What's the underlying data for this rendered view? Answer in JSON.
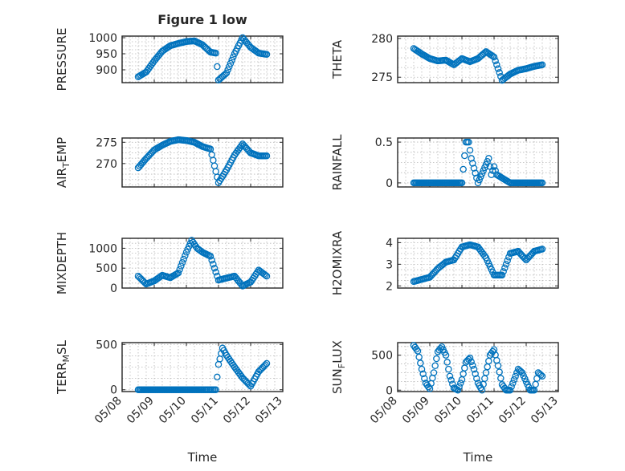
{
  "figure": {
    "title": "Figure 1 low",
    "xlabel": "Time",
    "marker_color": "#0072BD",
    "panel_ids": [
      "p0",
      "p1",
      "p2",
      "p3",
      "p4",
      "p5",
      "p6",
      "p7"
    ]
  },
  "chart_data": [
    {
      "id": "p0",
      "type": "scatter",
      "title": "Figure 1 low",
      "ylabel": "PRESSURE",
      "xlim": [
        "05/08",
        "05/13"
      ],
      "ylim": [
        860,
        1005
      ],
      "yticks": [
        900,
        950,
        1000
      ],
      "xticks": [
        "05/08",
        "05/09",
        "05/10",
        "05/11",
        "05/12",
        "05/13"
      ],
      "grid": true,
      "series": [
        {
          "x": [
            "05/08 12:00",
            "05/08 18:00",
            "05/09 00:00",
            "05/09 06:00",
            "05/09 12:00",
            "05/09 18:00",
            "05/10 00:00",
            "05/10 06:00",
            "05/10 12:00",
            "05/10 18:00",
            "05/10 22:00",
            "05/11 00:00",
            "05/11 06:00",
            "05/11 12:00",
            "05/11 18:00",
            "05/12 00:00",
            "05/12 06:00",
            "05/12 12:00"
          ],
          "y": [
            878,
            893,
            928,
            958,
            975,
            982,
            988,
            990,
            978,
            955,
            952,
            868,
            890,
            950,
            1000,
            970,
            952,
            948
          ]
        }
      ]
    },
    {
      "id": "p1",
      "type": "scatter",
      "ylabel": "THETA",
      "xlim": [
        "05/08",
        "05/13"
      ],
      "ylim": [
        274.3,
        280.3
      ],
      "yticks": [
        275,
        280
      ],
      "xticks": [
        "05/08",
        "05/09",
        "05/10",
        "05/11",
        "05/12",
        "05/13"
      ],
      "grid": true,
      "series": [
        {
          "x": [
            "05/08 12:00",
            "05/08 18:00",
            "05/09 00:00",
            "05/09 06:00",
            "05/09 12:00",
            "05/09 18:00",
            "05/10 00:00",
            "05/10 06:00",
            "05/10 12:00",
            "05/10 18:00",
            "05/11 00:00",
            "05/11 06:00",
            "05/11 12:00",
            "05/11 18:00",
            "05/12 00:00",
            "05/12 06:00",
            "05/12 12:00"
          ],
          "y": [
            278.7,
            278.0,
            277.4,
            277.1,
            277.2,
            276.6,
            277.4,
            277.0,
            277.4,
            278.3,
            277.6,
            274.6,
            275.4,
            275.9,
            276.1,
            276.4,
            276.6
          ]
        }
      ]
    },
    {
      "id": "p2",
      "type": "scatter",
      "ylabel": "AIR_TEMP",
      "xlim": [
        "05/08",
        "05/13"
      ],
      "ylim": [
        264.5,
        276
      ],
      "yticks": [
        270,
        275
      ],
      "xticks": [
        "05/08",
        "05/09",
        "05/10",
        "05/11",
        "05/12",
        "05/13"
      ],
      "grid": true,
      "series": [
        {
          "x": [
            "05/08 12:00",
            "05/08 18:00",
            "05/09 00:00",
            "05/09 06:00",
            "05/09 12:00",
            "05/09 18:00",
            "05/10 00:00",
            "05/10 06:00",
            "05/10 12:00",
            "05/10 18:00",
            "05/11 00:00",
            "05/11 06:00",
            "05/11 12:00",
            "05/11 18:00",
            "05/12 00:00",
            "05/12 06:00",
            "05/12 12:00"
          ],
          "y": [
            269.0,
            271.2,
            273.2,
            274.3,
            275.2,
            275.6,
            275.4,
            275.0,
            274.0,
            273.4,
            265.5,
            268.5,
            272.0,
            274.6,
            272.5,
            271.8,
            271.8
          ]
        }
      ]
    },
    {
      "id": "p3",
      "type": "scatter",
      "ylabel": "RAINFALL",
      "xlim": [
        "05/08",
        "05/13"
      ],
      "ylim": [
        -0.05,
        0.55
      ],
      "yticks": [
        0,
        0.5
      ],
      "xticks": [
        "05/08",
        "05/09",
        "05/10",
        "05/11",
        "05/12",
        "05/13"
      ],
      "grid": true,
      "series": [
        {
          "x": [
            "05/08 12:00",
            "05/09 00:00",
            "05/09 12:00",
            "05/10 00:00",
            "05/10 03:00",
            "05/10 05:00",
            "05/10 07:00",
            "05/10 12:00",
            "05/10 20:00",
            "05/10 22:00",
            "05/11 00:00",
            "05/11 02:00",
            "05/11 12:00",
            "05/12 00:00",
            "05/12 12:00"
          ],
          "y": [
            0,
            0,
            0,
            0,
            0.5,
            0.5,
            0.3,
            0,
            0.3,
            0.1,
            0.2,
            0.1,
            0,
            0,
            0
          ]
        }
      ]
    },
    {
      "id": "p4",
      "type": "scatter",
      "ylabel": "MIXDEPTH",
      "xlim": [
        "05/08",
        "05/13"
      ],
      "ylim": [
        0,
        1250
      ],
      "yticks": [
        0,
        500,
        1000
      ],
      "xticks": [
        "05/08",
        "05/09",
        "05/10",
        "05/11",
        "05/12",
        "05/13"
      ],
      "grid": true,
      "series": [
        {
          "x": [
            "05/08 12:00",
            "05/08 18:00",
            "05/09 00:00",
            "05/09 06:00",
            "05/09 12:00",
            "05/09 18:00",
            "05/10 00:00",
            "05/10 04:00",
            "05/10 08:00",
            "05/10 12:00",
            "05/10 18:00",
            "05/11 00:00",
            "05/11 06:00",
            "05/11 12:00",
            "05/11 18:00",
            "05/12 00:00",
            "05/12 06:00",
            "05/12 12:00"
          ],
          "y": [
            300,
            100,
            180,
            320,
            260,
            380,
            900,
            1200,
            1000,
            900,
            800,
            200,
            250,
            300,
            50,
            150,
            450,
            300
          ]
        }
      ]
    },
    {
      "id": "p5",
      "type": "scatter",
      "ylabel": "H2OMIXRA",
      "xlim": [
        "05/08",
        "05/13"
      ],
      "ylim": [
        1.9,
        4.2
      ],
      "yticks": [
        2,
        3,
        4
      ],
      "xticks": [
        "05/08",
        "05/09",
        "05/10",
        "05/11",
        "05/12",
        "05/13"
      ],
      "grid": true,
      "series": [
        {
          "x": [
            "05/08 12:00",
            "05/08 18:00",
            "05/09 00:00",
            "05/09 06:00",
            "05/09 12:00",
            "05/09 18:00",
            "05/10 00:00",
            "05/10 06:00",
            "05/10 12:00",
            "05/10 18:00",
            "05/11 00:00",
            "05/11 06:00",
            "05/11 12:00",
            "05/11 18:00",
            "05/12 00:00",
            "05/12 06:00",
            "05/12 12:00"
          ],
          "y": [
            2.2,
            2.3,
            2.4,
            2.8,
            3.1,
            3.2,
            3.8,
            3.9,
            3.8,
            3.3,
            2.5,
            2.5,
            3.5,
            3.6,
            3.2,
            3.6,
            3.7
          ]
        }
      ]
    },
    {
      "id": "p6",
      "type": "scatter",
      "ylabel": "TERR_MSL",
      "xlim": [
        "05/08",
        "05/13"
      ],
      "ylim": [
        -20,
        520
      ],
      "yticks": [
        0,
        500
      ],
      "xticks": [
        "05/08",
        "05/09",
        "05/10",
        "05/11",
        "05/12",
        "05/13"
      ],
      "grid": true,
      "series": [
        {
          "x": [
            "05/08 12:00",
            "05/09 00:00",
            "05/09 12:00",
            "05/10 00:00",
            "05/10 12:00",
            "05/10 22:00",
            "05/11 00:00",
            "05/11 03:00",
            "05/11 06:00",
            "05/11 12:00",
            "05/11 18:00",
            "05/12 00:00",
            "05/12 06:00",
            "05/12 12:00"
          ],
          "y": [
            0,
            0,
            0,
            0,
            0,
            0,
            280,
            460,
            380,
            250,
            130,
            40,
            200,
            290
          ]
        }
      ]
    },
    {
      "id": "p7",
      "type": "scatter",
      "ylabel": "SUN_FLUX",
      "xlim": [
        "05/08",
        "05/13"
      ],
      "ylim": [
        -20,
        680
      ],
      "yticks": [
        0,
        500
      ],
      "xticks": [
        "05/08",
        "05/09",
        "05/10",
        "05/11",
        "05/12",
        "05/13"
      ],
      "grid": true,
      "series": [
        {
          "x": [
            "05/08 12:00",
            "05/08 15:00",
            "05/08 18:00",
            "05/08 21:00",
            "05/09 00:00",
            "05/09 03:00",
            "05/09 06:00",
            "05/09 09:00",
            "05/09 12:00",
            "05/09 15:00",
            "05/09 18:00",
            "05/09 21:00",
            "05/10 00:00",
            "05/10 03:00",
            "05/10 06:00",
            "05/10 09:00",
            "05/10 12:00",
            "05/10 15:00",
            "05/10 18:00",
            "05/10 21:00",
            "05/11 00:00",
            "05/11 03:00",
            "05/11 06:00",
            "05/11 09:00",
            "05/11 12:00",
            "05/11 15:00",
            "05/11 18:00",
            "05/11 21:00",
            "05/12 00:00",
            "05/12 03:00",
            "05/12 06:00",
            "05/12 09:00",
            "05/12 12:00"
          ],
          "y": [
            640,
            560,
            300,
            100,
            20,
            250,
            550,
            620,
            500,
            200,
            30,
            0,
            150,
            400,
            460,
            300,
            100,
            0,
            250,
            500,
            580,
            350,
            80,
            0,
            0,
            150,
            300,
            250,
            120,
            0,
            0,
            250,
            200
          ]
        }
      ]
    }
  ]
}
